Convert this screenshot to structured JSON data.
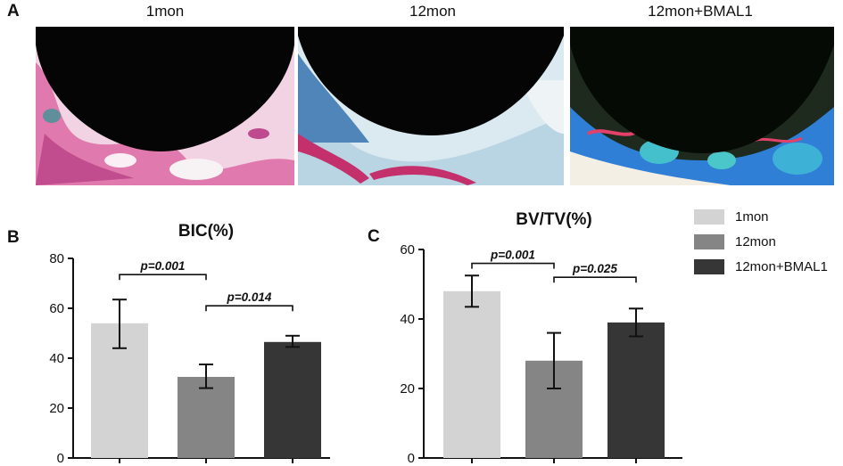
{
  "panel_a": {
    "letter": "A",
    "images": [
      {
        "label": "1mon"
      },
      {
        "label": "12mon"
      },
      {
        "label": "12mon+BMAL1"
      }
    ]
  },
  "colors": {
    "1mon": "#d3d3d3",
    "12mon": "#858585",
    "12mon+BMAL1": "#363636"
  },
  "legend": {
    "items": [
      {
        "label": "1mon",
        "color": "#d3d3d3"
      },
      {
        "label": "12mon",
        "color": "#858585"
      },
      {
        "label": "12mon+BMAL1",
        "color": "#363636"
      }
    ]
  },
  "chart_data": [
    {
      "type": "bar",
      "letter": "B",
      "title": "BIC(%)",
      "xlabel": "",
      "ylabel": "",
      "categories": [
        "1mon",
        "12mon",
        "12mon+BMAL1"
      ],
      "values": [
        54,
        32.5,
        46.5
      ],
      "errors": [
        [
          44,
          63.5
        ],
        [
          28,
          37.5
        ],
        [
          44.5,
          49
        ]
      ],
      "ylim": [
        0,
        80
      ],
      "yticks": [
        0,
        20,
        40,
        60,
        80
      ],
      "grid": false,
      "comparisons": [
        {
          "from": 0,
          "to": 1,
          "label": "p=0.001",
          "y": 73.5
        },
        {
          "from": 1,
          "to": 2,
          "label": "p=0.014",
          "y": 61
        }
      ]
    },
    {
      "type": "bar",
      "letter": "C",
      "title": "BV/TV(%)",
      "xlabel": "",
      "ylabel": "",
      "categories": [
        "1mon",
        "12mon",
        "12mon+BMAL1"
      ],
      "values": [
        48,
        28,
        39
      ],
      "errors": [
        [
          43.5,
          52.5
        ],
        [
          20,
          36
        ],
        [
          35,
          43
        ]
      ],
      "ylim": [
        0,
        60
      ],
      "yticks": [
        0,
        20,
        40,
        60
      ],
      "grid": false,
      "comparisons": [
        {
          "from": 0,
          "to": 1,
          "label": "p=0.001",
          "y": 56
        },
        {
          "from": 1,
          "to": 2,
          "label": "p=0.025",
          "y": 52
        }
      ]
    }
  ]
}
